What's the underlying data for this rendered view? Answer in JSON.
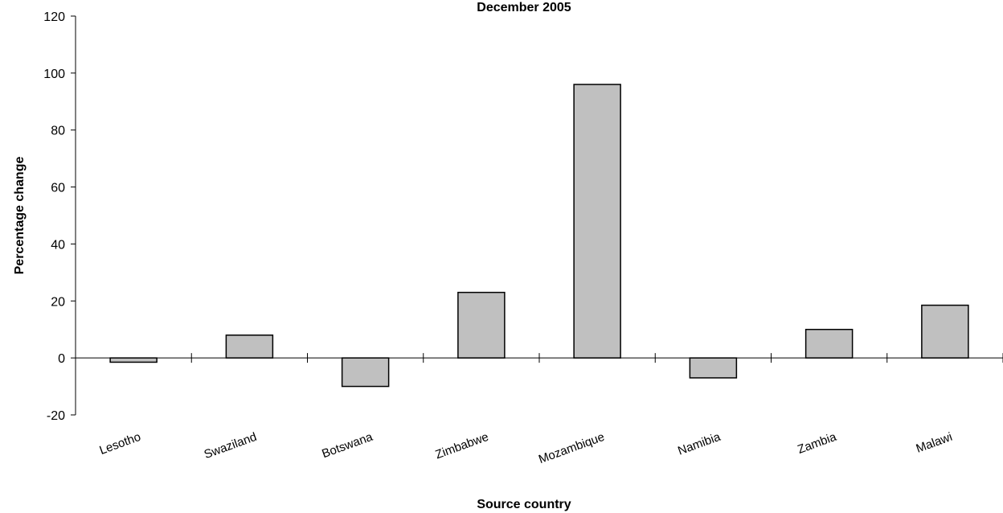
{
  "chart_data": {
    "type": "bar",
    "title": "December 2005",
    "xlabel": "Source country",
    "ylabel": "Percentage change",
    "categories": [
      "Lesotho",
      "Swaziland",
      "Botswana",
      "Zimbabwe",
      "Mozambique",
      "Namibia",
      "Zambia",
      "Malawi"
    ],
    "values": [
      -1.5,
      8,
      -10,
      23,
      96,
      -7,
      10,
      18.5
    ],
    "ylim": [
      -20,
      120
    ],
    "yticks": [
      -20,
      0,
      20,
      40,
      60,
      80,
      100,
      120
    ],
    "ytick_labels": [
      "-20",
      "0",
      "20",
      "40",
      "60",
      "80",
      "100",
      "120"
    ],
    "grid": false,
    "legend": "none",
    "bar_color": "#c0c0c0"
  }
}
